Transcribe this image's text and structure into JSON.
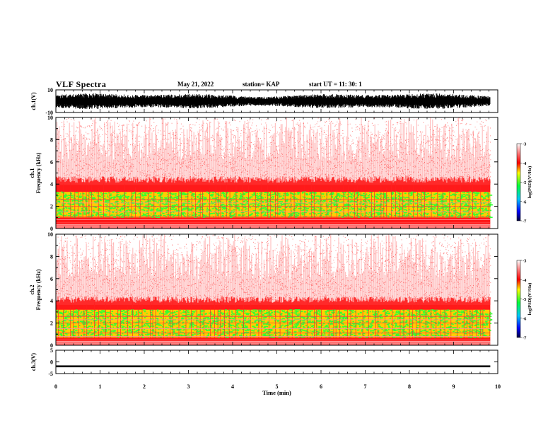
{
  "header": {
    "title": "VLF Spectra",
    "date": "May 21, 2022",
    "station": "station= KAP",
    "start": "start  UT  =   11: 30: 1"
  },
  "chart_data": [
    {
      "type": "line",
      "name": "ch1-waveform",
      "ylabel": "ch.1(V)",
      "ylim": [
        -10,
        10
      ],
      "yticks": [
        "10",
        "-10"
      ],
      "xlim": [
        0,
        10
      ],
      "data_end_min": 9.83,
      "signal": "noisy waveform, envelope roughly -7 to +7 V"
    },
    {
      "type": "heatmap",
      "name": "ch1-spectrogram",
      "ylabel": "ch.1\nFrequency (kHz)",
      "ylim": [
        0,
        10
      ],
      "yticks": [
        "0",
        "2",
        "4",
        "6",
        "8",
        "10"
      ],
      "xlim": [
        0,
        10
      ],
      "data_end_min": 9.83,
      "noise_band_top_khz": 4.0,
      "green_band_khz": [
        1.0,
        3.3
      ],
      "colorbar": {
        "label": "log(PSD)(V²/Hz)",
        "range": [
          -7,
          -3
        ],
        "ticks": [
          "-3",
          "-4",
          "-5",
          "-6",
          "-7"
        ]
      }
    },
    {
      "type": "heatmap",
      "name": "ch2-spectrogram",
      "ylabel": "ch.2\nFrequency (kHz)",
      "ylim": [
        0,
        10
      ],
      "yticks": [
        "0",
        "2",
        "4",
        "6",
        "8",
        "10"
      ],
      "xlim": [
        0,
        10
      ],
      "data_end_min": 9.83,
      "noise_band_top_khz": 3.7,
      "green_band_khz": [
        0.7,
        3.2
      ],
      "colorbar": {
        "label": "log(PSD)(V²/Hz)",
        "range": [
          -7,
          -3
        ],
        "ticks": [
          "-3",
          "-4",
          "-5",
          "-6",
          "-7"
        ]
      }
    },
    {
      "type": "line",
      "name": "ch3-waveform",
      "ylabel": "ch.3(V)",
      "ylim": [
        -5,
        5
      ],
      "yticks": [
        "5",
        "0",
        "-5"
      ],
      "xlim": [
        0,
        10
      ],
      "data_end_min": 9.83,
      "signal": "flat band, approximately -2.3 to -1.5 V",
      "band_v": [
        -2.3,
        -1.5
      ]
    }
  ],
  "xaxis": {
    "label": "Time (min)",
    "ticks": [
      "0",
      "1",
      "2",
      "3",
      "4",
      "5",
      "6",
      "7",
      "8",
      "9",
      "10"
    ]
  },
  "colors": {
    "waveform": "#000000",
    "spectrogram_background": "#ffffff",
    "noise_red": "#ff0000",
    "band_green": "#33ff33",
    "band_yellow": "#ffee00"
  }
}
